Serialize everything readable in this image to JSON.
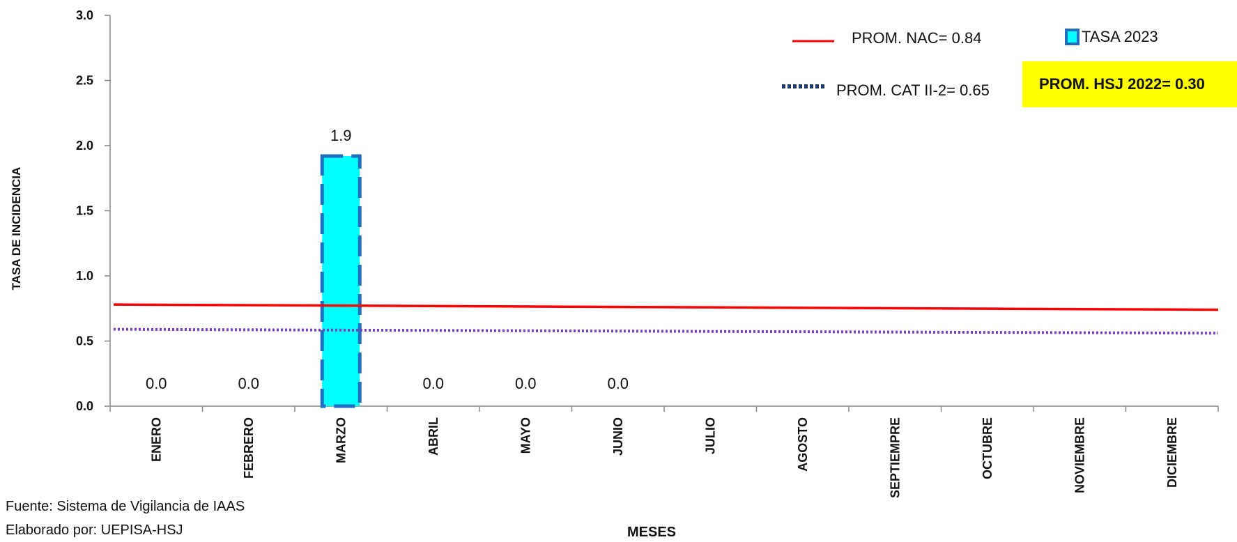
{
  "chart_data": {
    "type": "bar",
    "ylabel": "TASA DE INCIDENCIA",
    "xlabel": "MESES",
    "ylim": [
      0,
      3.0
    ],
    "yticks": [
      "0.0",
      "0.5",
      "1.0",
      "1.5",
      "2.0",
      "2.5",
      "3.0"
    ],
    "categories": [
      "ENERO",
      "FEBRERO",
      "MARZO",
      "ABRIL",
      "MAYO",
      "JUNIO",
      "JULIO",
      "AGOSTO",
      "SEPTIEMPRE",
      "OCTUBRE",
      "NOVIEMBRE",
      "DICIEMBRE"
    ],
    "series": [
      {
        "name": "TASA 2023",
        "values": [
          0.0,
          0.0,
          1.92,
          0.0,
          0.0,
          0.0,
          null,
          null,
          null,
          null,
          null,
          null
        ],
        "labels": [
          "0.0",
          "0.0",
          "1.9",
          "0.0",
          "0.0",
          "0.0",
          "",
          "",
          "",
          "",
          "",
          ""
        ],
        "color": "#00FFFF",
        "border_color": "#1F6FC0"
      }
    ],
    "reference_lines": [
      {
        "name": "PROM. NAC= 0.84",
        "value_start": 0.78,
        "value_end": 0.74,
        "color": "#FF0000",
        "style": "solid"
      },
      {
        "name": "PROM. CAT  II-2= 0.65",
        "value_start": 0.59,
        "value_end": 0.56,
        "color": "#7B3FC4",
        "legend_color": "#1F3A6E",
        "style": "dotted"
      }
    ],
    "highlight_box": {
      "text": "PROM. HSJ 2022= 0.30",
      "color": "#FFFF00"
    },
    "grid": false,
    "legend_position": "top-right"
  },
  "footnotes": {
    "source": "Fuente: Sistema de Vigilancia de IAAS",
    "author": "Elaborado por: UEPISA-HSJ"
  }
}
